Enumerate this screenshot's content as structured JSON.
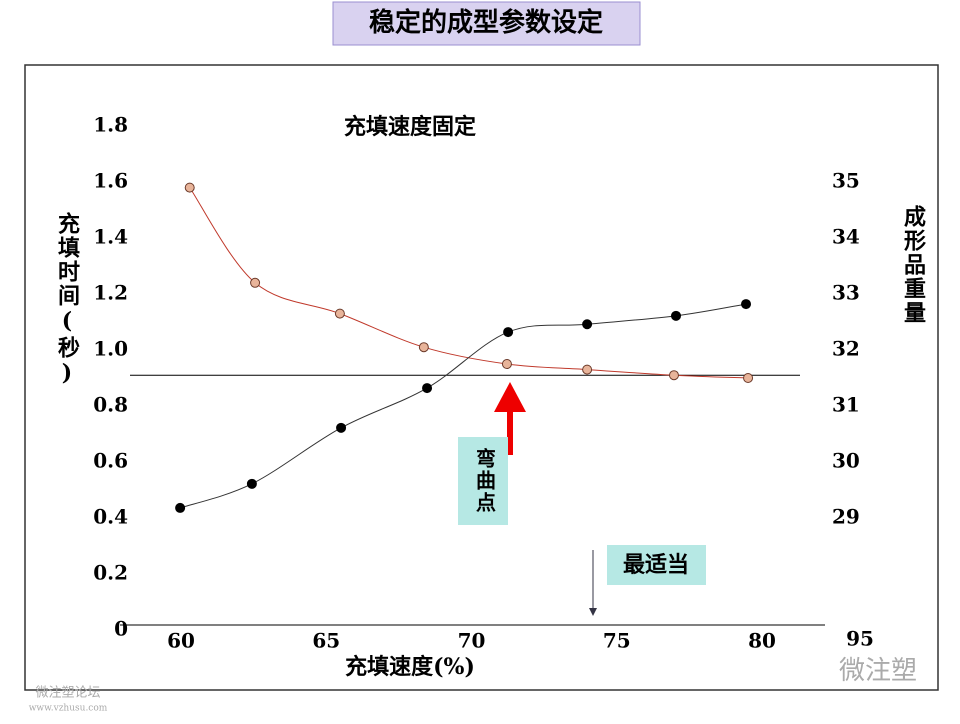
{
  "chart_data": {
    "type": "line",
    "title": "稳定的成型参数设定",
    "subtitle": "充填速度固定",
    "x_label": "充填速度(%)",
    "y_label": "充填时间(秒)",
    "y2_label": "成形品重量",
    "corner_label": "95",
    "annotations": [
      "弯曲点",
      "最适当"
    ],
    "watermarks": [
      "微注塑",
      "微注塑论坛",
      "www.vzhusu.com"
    ],
    "xlim": [
      57.9,
      82.1
    ],
    "xticks": [
      60,
      65,
      70,
      75,
      80
    ],
    "ylim": [
      0,
      2.0
    ],
    "yticks": [
      0,
      0.2,
      0.4,
      0.6,
      0.8,
      {
        "value": 1,
        "label": "1.0"
      },
      1.2,
      1.4,
      1.6,
      1.8
    ],
    "y2lim": [
      27,
      37
    ],
    "y2ticks": [
      29,
      30,
      31,
      32,
      33,
      34,
      35
    ],
    "hline": 0.91,
    "series": [
      {
        "color": "#c0392b",
        "marker": "hollow",
        "x": [
          60.3,
          62.55,
          65.47,
          68.36,
          71.22,
          73.98,
          76.97,
          79.52
        ],
        "values": [
          1.58,
          1.24,
          1.13,
          1.01,
          0.95,
          0.93,
          0.91,
          0.9
        ]
      },
      {
        "color": "#333333",
        "marker": "filled",
        "axis": "y2",
        "x": [
          59.97,
          62.44,
          65.51,
          68.47,
          71.26,
          73.98,
          77.04,
          79.45
        ],
        "values": [
          29.18,
          29.61,
          30.61,
          31.32,
          32.32,
          32.46,
          32.61,
          32.82
        ]
      }
    ]
  }
}
